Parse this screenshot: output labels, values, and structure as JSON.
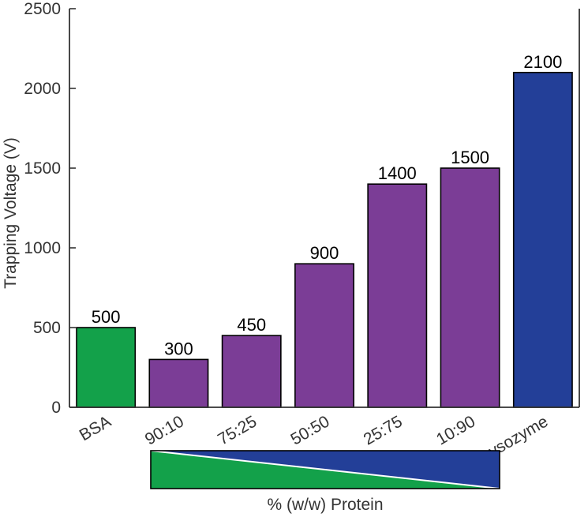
{
  "chart_data": {
    "type": "bar",
    "categories": [
      "BSA",
      "90:10",
      "75:25",
      "50:50",
      "25:75",
      "10:90",
      "Lysozyme"
    ],
    "values": [
      500,
      300,
      450,
      900,
      1400,
      1500,
      2100
    ],
    "data_labels": [
      "500",
      "300",
      "450",
      "900",
      "1400",
      "1500",
      "2100"
    ],
    "ylabel": "Trapping Voltage (V)",
    "xlabel": "% (w/w) Protein",
    "ylim": [
      0,
      2500
    ],
    "yticks": [
      0,
      500,
      1000,
      1500,
      2000,
      2500
    ],
    "ytick_labels": [
      "0",
      "500",
      "1000",
      "1500",
      "2000",
      "2500"
    ],
    "grid": false,
    "bar_colors": [
      "#13A14A",
      "#7B3D96",
      "#7B3D96",
      "#7B3D96",
      "#7B3D96",
      "#7B3D96",
      "#233F98"
    ],
    "composition_key": {
      "top_color": "#233F98",
      "bottom_color": "#13A14A"
    }
  }
}
